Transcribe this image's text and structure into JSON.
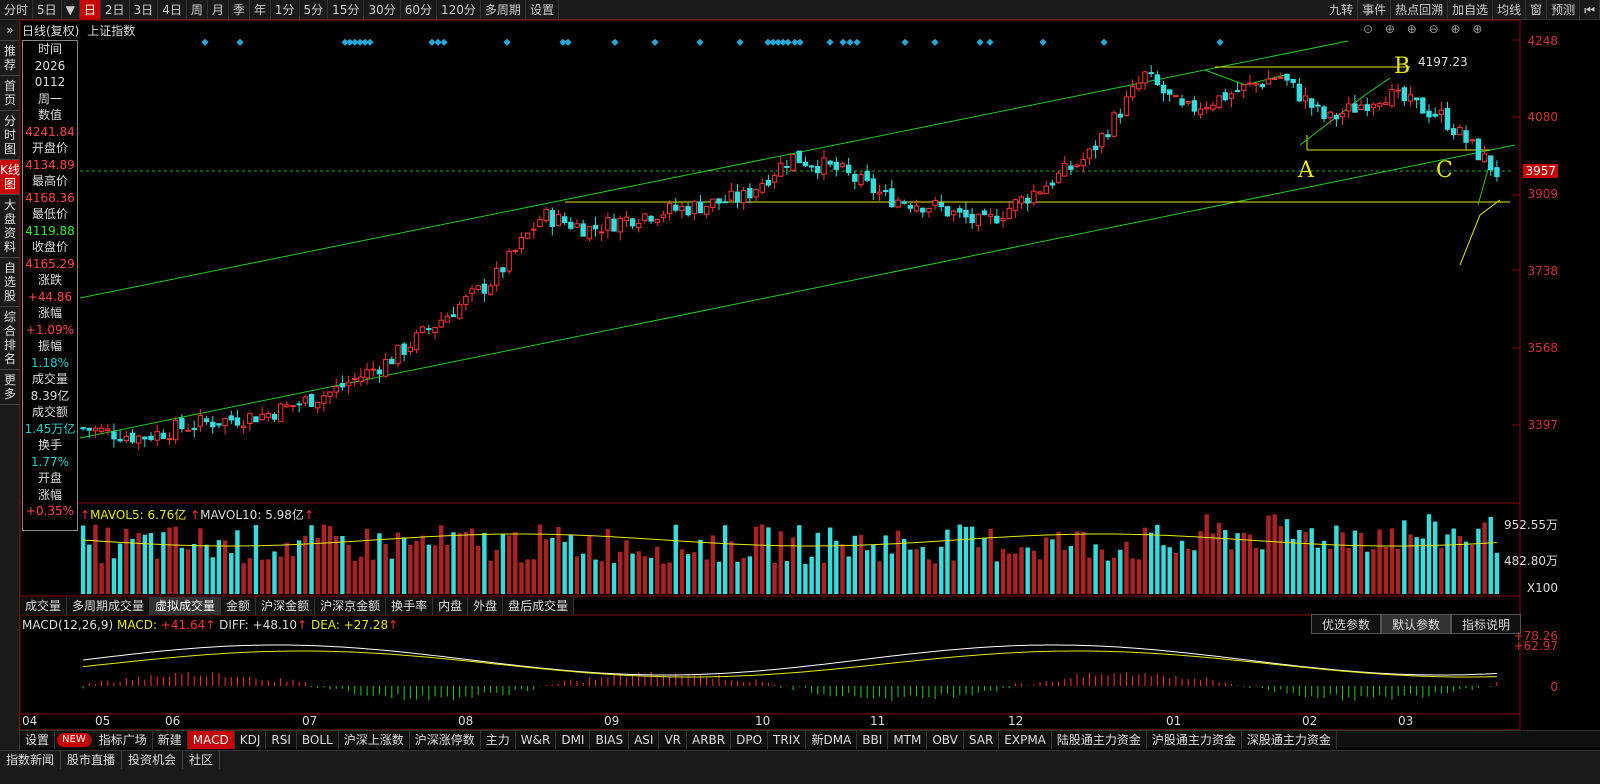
{
  "topbar": {
    "tabs": [
      "分时",
      "5日",
      "▼",
      "日",
      "2日",
      "3日",
      "4日",
      "周",
      "月",
      "季",
      "年",
      "1分",
      "5分",
      "15分",
      "30分",
      "60分",
      "120分",
      "多周期",
      "设置"
    ],
    "active_index": 3,
    "right": [
      "九转",
      "事件",
      "热点回溯",
      "加自选",
      "均线",
      "窗",
      "预测"
    ]
  },
  "sidebar": {
    "items": [
      "推荐",
      "首页",
      "分时图",
      "K线图",
      "大盘资料",
      "自选股",
      "综合排名",
      "更多"
    ],
    "active_index": 3
  },
  "chart_header": {
    "mode": "日线(复权)",
    "index_name": "上证指数"
  },
  "info": {
    "time_label": "时间",
    "date1": "2026",
    "date2": "0112",
    "weekday": "周一",
    "value_label": "数值",
    "value": "4241.84",
    "open_label": "开盘价",
    "open": "4134.89",
    "high_label": "最高价",
    "high": "4168.36",
    "low_label": "最低价",
    "low": "4119.88",
    "close_label": "收盘价",
    "close": "4165.29",
    "chg_label": "涨跌",
    "chg": "+44.86",
    "pct_label": "涨幅",
    "pct": "+1.09%",
    "amp_label": "振幅",
    "amp": "1.18%",
    "vol_label": "成交量",
    "vol": "8.39亿",
    "amt_label": "成交额",
    "amt": "1.45万亿",
    "turn_label": "换手",
    "turn": "1.77%",
    "openpct_label1": "开盘",
    "openpct_label2": "涨幅",
    "openpct": "+0.35%"
  },
  "price_axis": [
    "4248",
    "4080",
    "3957",
    "3909",
    "3738",
    "3568",
    "3397"
  ],
  "annotations": {
    "A": "A",
    "B": "B",
    "C": "C",
    "peak": "4197.23"
  },
  "volume": {
    "mavol5_label": "MAVOL5:",
    "mavol5": "6.76亿",
    "mavol10_label": "MAVOL10:",
    "mavol10": "5.98亿",
    "axis": [
      "952.55万",
      "482.80万",
      "X100"
    ]
  },
  "vol_tabs": [
    "成交量",
    "多周期成交量",
    "虚拟成交量",
    "金额",
    "沪深金额",
    "沪深京金额",
    "换手率",
    "内盘",
    "外盘",
    "盘后成交量"
  ],
  "vol_tabs_active": 2,
  "macd": {
    "title": "MACD(12,26,9)",
    "macd_label": "MACD:",
    "macd": "+41.64",
    "diff_label": "DIFF:",
    "diff": "+48.10",
    "dea_label": "DEA:",
    "dea": "+27.28",
    "axis": [
      "+78.26",
      "+62.97",
      "0"
    ],
    "buttons": [
      "优选参数",
      "默认参数",
      "指标说明"
    ],
    "active_button": 1
  },
  "months": [
    "04",
    "05",
    "06",
    "07",
    "08",
    "09",
    "10",
    "11",
    "12",
    "01",
    "02",
    "03"
  ],
  "bottom_tabs": [
    "设置",
    "NEW",
    "指标广场",
    "新建",
    "MACD",
    "KDJ",
    "RSI",
    "BOLL",
    "沪深上涨数",
    "沪深涨停数",
    "主力",
    "W&R",
    "DMI",
    "BIAS",
    "ASI",
    "VR",
    "ARBR",
    "DPO",
    "TRIX",
    "新DMA",
    "BBI",
    "MTM",
    "OBV",
    "SAR",
    "EXPMA",
    "陆股通主力资金",
    "沪股通主力资金",
    "深股通主力资金"
  ],
  "bottom_active": 4,
  "bottom2": [
    "指数新闻",
    "股市直播",
    "投资机会",
    "社区"
  ],
  "colors": {
    "up": "#ff3333",
    "down": "#33dddd",
    "channel": "#22cc22",
    "support": "#e8e800"
  }
}
